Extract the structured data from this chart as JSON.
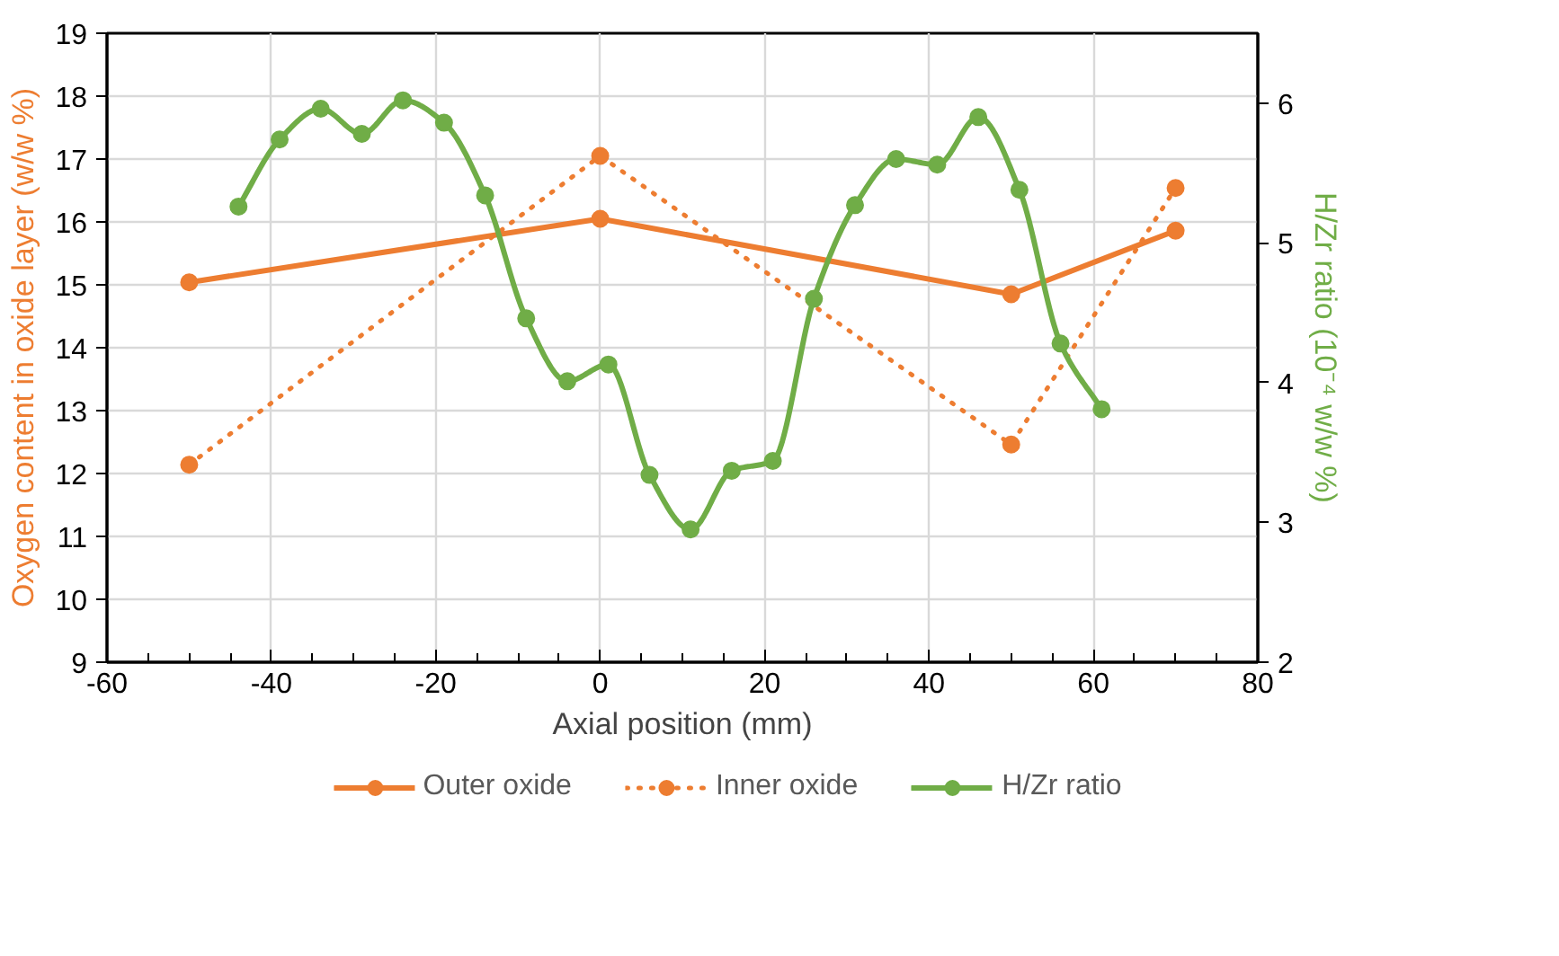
{
  "chart_data": {
    "type": "line",
    "xlabel": "Axial position (mm)",
    "ylabel": "Oxygen content in oxide layer (w/w %)",
    "y2label": "H/Zr ratio (10⁻⁴ w/w %)",
    "series": [
      {
        "name": "Outer oxide",
        "color": "#ed7d31",
        "line_style": "solid",
        "x": [
          -50,
          0,
          50,
          70
        ],
        "values": [
          15.04,
          16.05,
          14.85,
          15.86
        ]
      },
      {
        "name": "Inner oxide",
        "color": "#ed7d31",
        "line_style": "dotted",
        "x": [
          -50,
          0,
          50,
          70
        ],
        "values": [
          12.14,
          17.05,
          12.46,
          16.54
        ]
      },
      {
        "name": "H/Zr ratio",
        "color": "#70ad47",
        "line_style": "solid",
        "axis": "y2",
        "x": [
          -44,
          -39,
          -34,
          -29,
          -24,
          -19,
          -14,
          -9,
          -4,
          1,
          6,
          11,
          16,
          21,
          26,
          31,
          36,
          41,
          46,
          51,
          56,
          61
        ],
        "values": [
          5.26,
          5.74,
          5.96,
          5.78,
          6.02,
          5.86,
          5.34,
          4.46,
          4.01,
          4.13,
          3.34,
          2.95,
          3.37,
          3.44,
          4.6,
          5.27,
          5.6,
          5.56,
          5.9,
          5.38,
          4.28,
          3.81
        ]
      }
    ],
    "xlim": [
      -60,
      80
    ],
    "xticks": [
      -60,
      -40,
      -20,
      0,
      20,
      40,
      60,
      80
    ],
    "ylim": [
      9,
      19
    ],
    "yticks": [
      9,
      10,
      11,
      12,
      13,
      14,
      15,
      16,
      17,
      18,
      19
    ],
    "y2lim": [
      2,
      6.5
    ],
    "y2ticks": [
      2,
      3,
      4,
      5,
      6
    ],
    "marker": "circle",
    "grid": true,
    "legend": "bottom"
  }
}
